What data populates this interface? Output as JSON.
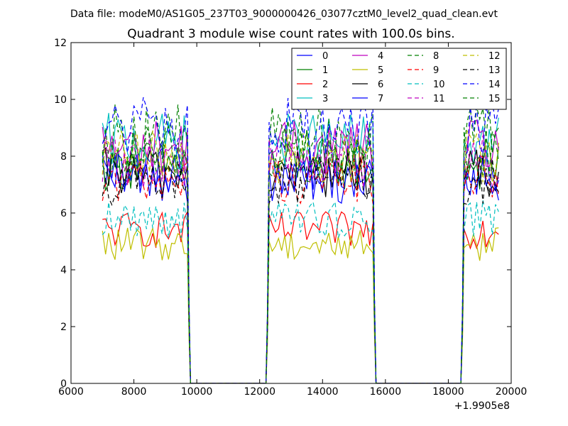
{
  "figure": {
    "suptitle": "Data file: modeM0/AS1G05_237T03_9000000426_03077cztM0_level2_quad_clean.evt",
    "title": "Quadrant 3 module wise count rates with 100.0s bins.",
    "x_offset_label": "+1.9905e8"
  },
  "chart_data": {
    "type": "line",
    "title": "Quadrant 3 module wise count rates with 100.0s bins.",
    "xlabel": "",
    "ylabel": "",
    "xlim": [
      6000,
      20000
    ],
    "ylim": [
      0,
      12
    ],
    "x_offset": "+1.9905e8",
    "xticks": [
      6000,
      8000,
      10000,
      12000,
      14000,
      16000,
      18000,
      20000
    ],
    "yticks": [
      0,
      2,
      4,
      6,
      8,
      10,
      12
    ],
    "grid": false,
    "legend_position": "top-right",
    "legend_columns": 4,
    "bin_width": 100,
    "segments": [
      {
        "start": 7000,
        "end": 9700
      },
      {
        "start": 12300,
        "end": 15600
      },
      {
        "start": 18500,
        "end": 19600
      }
    ],
    "series": [
      {
        "name": "0",
        "color": "#0000ff",
        "dash": "solid",
        "level": 7.5
      },
      {
        "name": "1",
        "color": "#008000",
        "dash": "solid",
        "level": 7.7
      },
      {
        "name": "2",
        "color": "#ff0000",
        "dash": "solid",
        "level": 5.4
      },
      {
        "name": "3",
        "color": "#00bfbf",
        "dash": "solid",
        "level": 8.5
      },
      {
        "name": "4",
        "color": "#bf00bf",
        "dash": "solid",
        "level": 8.3
      },
      {
        "name": "5",
        "color": "#bfbf00",
        "dash": "solid",
        "level": 4.9
      },
      {
        "name": "6",
        "color": "#000000",
        "dash": "solid",
        "level": 7.4
      },
      {
        "name": "7",
        "color": "#0000ff",
        "dash": "solid",
        "level": 7.2
      },
      {
        "name": "8",
        "color": "#008000",
        "dash": "dashed",
        "level": 8.8
      },
      {
        "name": "9",
        "color": "#ff0000",
        "dash": "dashed",
        "level": 7.2
      },
      {
        "name": "10",
        "color": "#00bfbf",
        "dash": "dashed",
        "level": 5.8
      },
      {
        "name": "11",
        "color": "#bf00bf",
        "dash": "dashed",
        "level": 7.8
      },
      {
        "name": "12",
        "color": "#bfbf00",
        "dash": "dashed",
        "level": 8.0
      },
      {
        "name": "13",
        "color": "#000000",
        "dash": "dashed",
        "level": 7.1
      },
      {
        "name": "14",
        "color": "#0000ff",
        "dash": "dashed",
        "level": 9.0
      },
      {
        "name": "15",
        "color": "#008000",
        "dash": "dashed",
        "level": 8.1
      }
    ]
  }
}
